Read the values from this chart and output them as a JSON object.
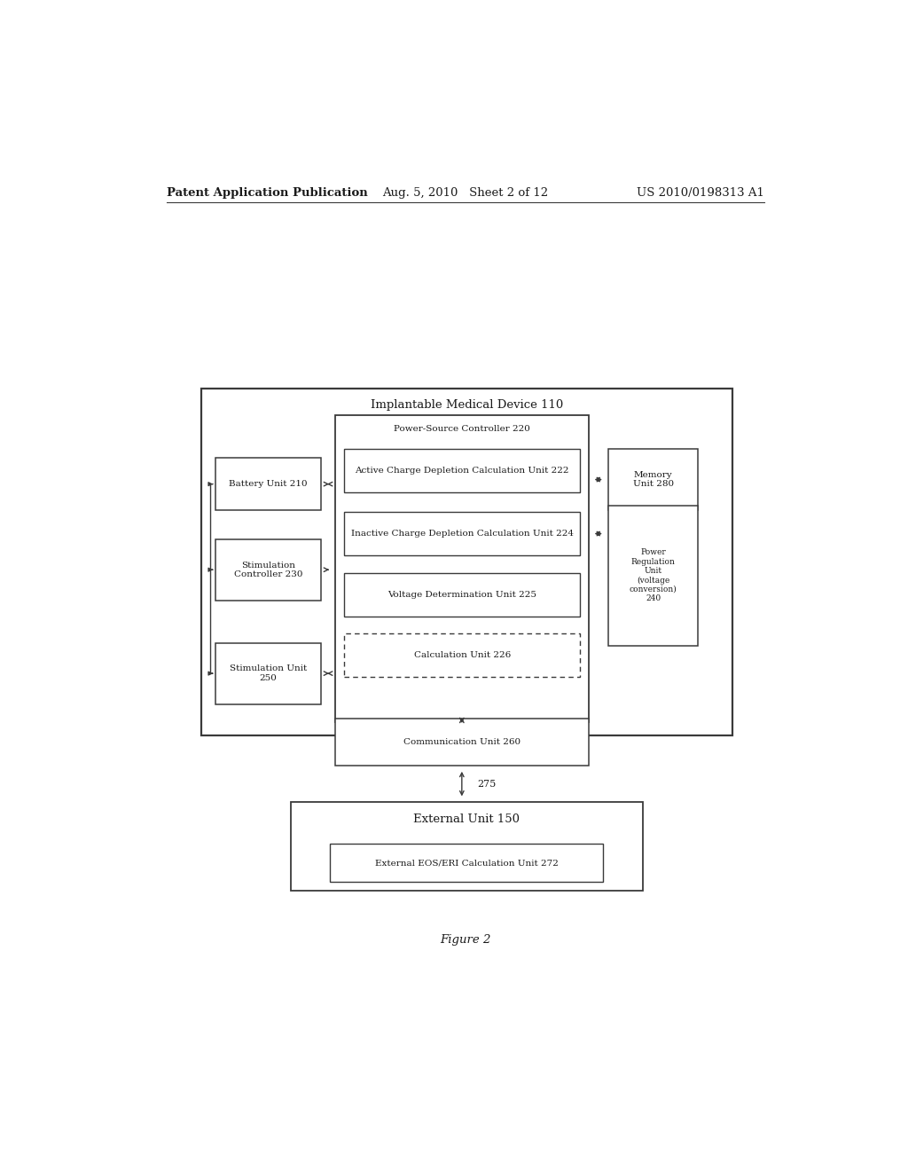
{
  "bg_color": "#ffffff",
  "header_left": "Patent Application Publication",
  "header_center": "Aug. 5, 2010   Sheet 2 of 12",
  "header_right": "US 2010/0198313 A1",
  "figure_caption": "Figure 2",
  "line_color": "#3a3a3a",
  "text_color": "#1a1a1a",
  "font_size_header": 9.5,
  "font_size_title": 9.5,
  "font_size_box": 8.0,
  "font_size_inner": 7.5,
  "font_size_caption": 9.5,
  "imd_outer": [
    0.125,
    0.34,
    0.755,
    0.385
  ],
  "psc_outer": [
    0.315,
    0.355,
    0.36,
    0.34
  ],
  "battery": [
    0.145,
    0.59,
    0.15,
    0.058
  ],
  "stim_ctrl": [
    0.145,
    0.49,
    0.15,
    0.068
  ],
  "stim_unit": [
    0.145,
    0.375,
    0.15,
    0.068
  ],
  "acd_calc": [
    0.328,
    0.61,
    0.335,
    0.048
  ],
  "icd_calc": [
    0.328,
    0.54,
    0.335,
    0.048
  ],
  "vd_unit": [
    0.328,
    0.472,
    0.335,
    0.048
  ],
  "calc_226": [
    0.328,
    0.405,
    0.335,
    0.048
  ],
  "memory": [
    0.703,
    0.59,
    0.128,
    0.068
  ],
  "power_reg": [
    0.703,
    0.44,
    0.128,
    0.155
  ],
  "comm_unit": [
    0.315,
    0.307,
    0.36,
    0.052
  ],
  "ext_unit": [
    0.252,
    0.168,
    0.5,
    0.098
  ],
  "ext_eos": [
    0.308,
    0.178,
    0.388,
    0.042
  ]
}
